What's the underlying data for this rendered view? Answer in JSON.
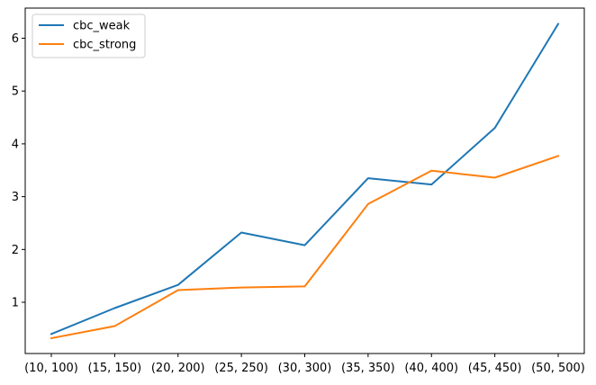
{
  "chart_data": {
    "type": "line",
    "categories": [
      "(10, 100)",
      "(15, 150)",
      "(20, 200)",
      "(25, 250)",
      "(30, 300)",
      "(35, 350)",
      "(40, 400)",
      "(45, 450)",
      "(50, 500)"
    ],
    "series": [
      {
        "name": "cbc_weak",
        "color": "#1f77b4",
        "values": [
          0.4,
          0.89,
          1.33,
          2.32,
          2.08,
          3.35,
          3.23,
          4.3,
          6.27
        ]
      },
      {
        "name": "cbc_strong",
        "color": "#ff7f0e",
        "values": [
          0.32,
          0.55,
          1.23,
          1.28,
          1.3,
          2.86,
          3.49,
          3.36,
          3.77
        ]
      }
    ],
    "yticks": [
      1,
      2,
      3,
      4,
      5,
      6
    ],
    "ylim": [
      0.03,
      6.57
    ],
    "title": "",
    "xlabel": "",
    "ylabel": "",
    "grid": false,
    "legend_position": "upper-left"
  }
}
